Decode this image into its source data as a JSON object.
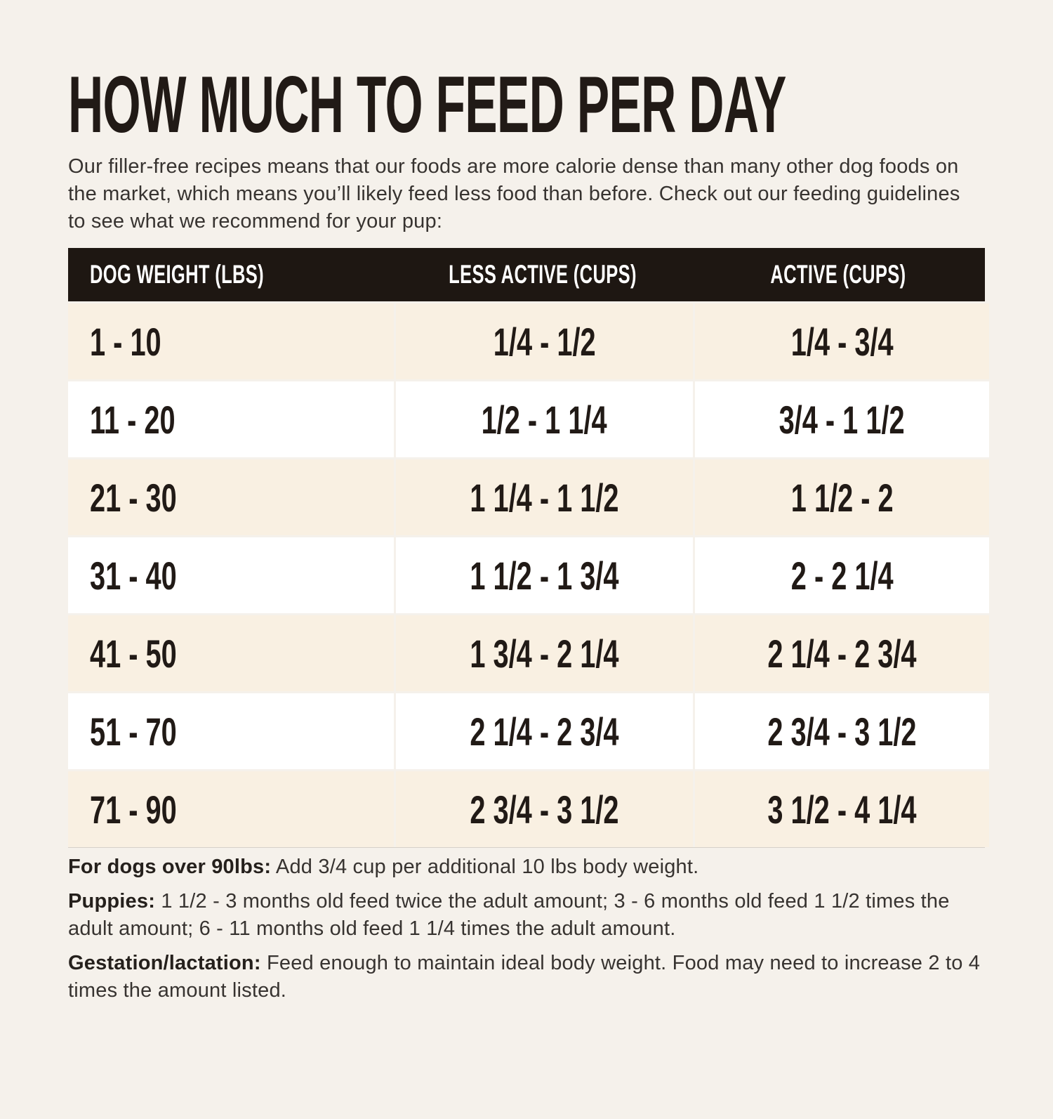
{
  "page": {
    "title": "HOW MUCH TO FEED PER DAY",
    "intro": "Our filler-free recipes means that our foods are more calorie dense than many other dog foods on the market, which means you’ll likely feed less food than before. Check out our feeding guidelines to see what we recommend for your pup:"
  },
  "table": {
    "columns": [
      "DOG WEIGHT (LBS)",
      "LESS ACTIVE (CUPS)",
      "ACTIVE (CUPS)"
    ],
    "rows": [
      {
        "weight": "1 - 10",
        "less_active": "1/4 - 1/2",
        "active": "1/4 - 3/4"
      },
      {
        "weight": "11 - 20",
        "less_active": "1/2 - 1 1/4",
        "active": "3/4 - 1 1/2"
      },
      {
        "weight": "21 - 30",
        "less_active": "1 1/4 - 1 1/2",
        "active": "1 1/2 - 2"
      },
      {
        "weight": "31 - 40",
        "less_active": "1 1/2 - 1 3/4",
        "active": "2 - 2 1/4"
      },
      {
        "weight": "41 - 50",
        "less_active": "1 3/4 - 2 1/4",
        "active": "2 1/4 - 2 3/4"
      },
      {
        "weight": "51 - 70",
        "less_active": "2 1/4 - 2 3/4",
        "active": "2 3/4 - 3 1/2"
      },
      {
        "weight": "71 - 90",
        "less_active": "2 3/4 - 3 1/2",
        "active": "3 1/2 - 4 1/4"
      }
    ]
  },
  "notes": [
    {
      "label": "For dogs over 90lbs:",
      "text": "Add 3/4 cup per additional 10 lbs body weight."
    },
    {
      "label": "Puppies:",
      "text": "1 1/2 - 3 months old feed twice the adult amount; 3 - 6 months old feed 1 1/2 times the adult amount; 6 - 11 months old feed 1 1/4 times the adult amount."
    },
    {
      "label": "Gestation/lactation:",
      "text": "Feed enough to maintain ideal body weight. Food may need to increase 2 to 4 times the amount listed."
    }
  ],
  "colors": {
    "page_background": "#f5f1eb",
    "header_background": "#1e1712",
    "header_text": "#ffffff",
    "row_cream": "#f9f0e2",
    "row_white": "#ffffff",
    "text_dark": "#211a16",
    "body_text": "#373330"
  }
}
